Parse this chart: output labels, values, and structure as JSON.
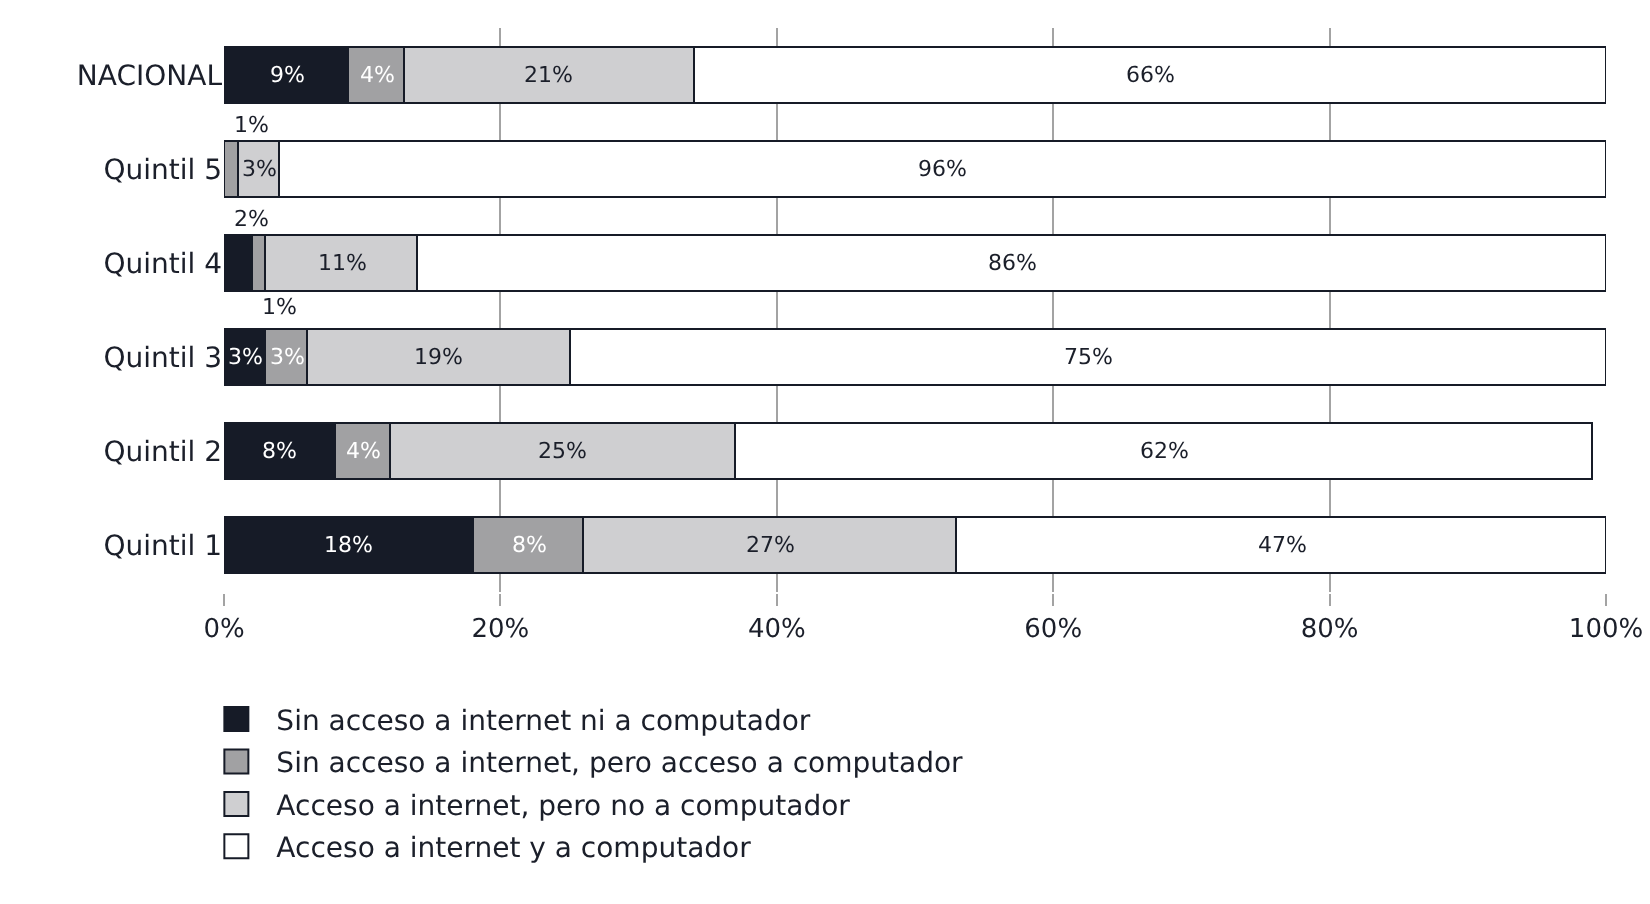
{
  "chart_data": {
    "type": "bar",
    "orientation": "horizontal",
    "stacked": true,
    "categories": [
      "NACIONAL",
      "Quintil 5",
      "Quintil 4",
      "Quintil 3",
      "Quintil 2",
      "Quintil 1"
    ],
    "series": [
      {
        "name": "Sin acceso a internet ni a computador",
        "color": "#161b27",
        "values": [
          9,
          null,
          2,
          3,
          8,
          18
        ],
        "value_labels": [
          "9%",
          null,
          "2%",
          "3%",
          "8%",
          "18%"
        ]
      },
      {
        "name": "Sin acceso a internet, pero acceso a computador",
        "color": "#a1a1a3",
        "values": [
          4,
          1,
          1,
          3,
          4,
          8
        ],
        "value_labels": [
          "4%",
          "1%",
          "1%",
          "3%",
          "4%",
          "8%"
        ]
      },
      {
        "name": "Acceso a internet, pero no a computador",
        "color": "#cfcfd1",
        "values": [
          21,
          3,
          11,
          19,
          25,
          27
        ],
        "value_labels": [
          "21%",
          "3%",
          "11%",
          "19%",
          "25%",
          "27%"
        ]
      },
      {
        "name": "Acceso a internet y a computador",
        "color": "#ffffff",
        "values": [
          66,
          96,
          86,
          75,
          62,
          47
        ],
        "value_labels": [
          "66%",
          "96%",
          "86%",
          "75%",
          "62%",
          "47%"
        ]
      }
    ],
    "xlim": [
      0,
      100
    ],
    "xticks": [
      {
        "value": 0,
        "label": "0%"
      },
      {
        "value": 20,
        "label": "20%"
      },
      {
        "value": 40,
        "label": "40%"
      },
      {
        "value": 60,
        "label": "60%"
      },
      {
        "value": 80,
        "label": "80%"
      },
      {
        "value": 100,
        "label": "100%"
      }
    ],
    "grid": "x",
    "legend": "bottom"
  }
}
